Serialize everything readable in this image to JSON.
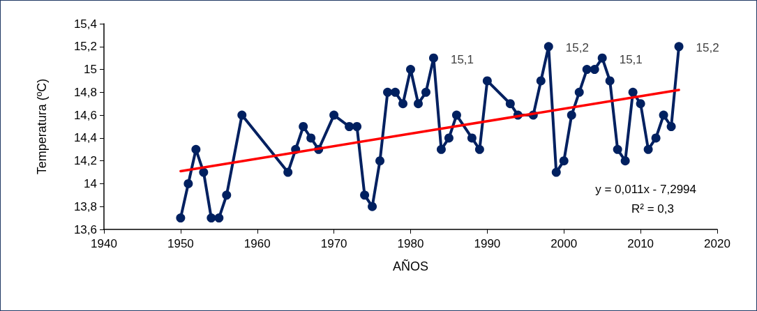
{
  "chart_data": {
    "type": "line",
    "xlabel": "AÑOS",
    "ylabel": "Temperatura (ºC)",
    "xlim": [
      1940,
      2020
    ],
    "xticks": [
      1940,
      1950,
      1960,
      1970,
      1980,
      1990,
      2000,
      2010,
      2020
    ],
    "ylim": [
      13.6,
      15.4
    ],
    "yticks": [
      {
        "value": 13.6,
        "label": "13,6"
      },
      {
        "value": 13.8,
        "label": "13,8"
      },
      14,
      {
        "value": 14.2,
        "label": "14,2"
      },
      {
        "value": 14.4,
        "label": "14,4"
      },
      {
        "value": 14.6,
        "label": "14,6"
      },
      {
        "value": 14.8,
        "label": "14,8"
      },
      15,
      {
        "value": 15.2,
        "label": "15,2"
      },
      {
        "value": 15.4,
        "label": "15,4"
      }
    ],
    "grid": false,
    "marker": "circle",
    "line_style": "solid",
    "series": [
      {
        "color": "#002060",
        "x": [
          1950,
          1951,
          1952,
          1953,
          1954,
          1955,
          1956,
          1958,
          1964,
          1965,
          1966,
          1967,
          1968,
          1970,
          1972,
          1973,
          1974,
          1975,
          1976,
          1977,
          1978,
          1979,
          1980,
          1981,
          1982,
          1983,
          1984,
          1985,
          1986,
          1988,
          1989,
          1990,
          1993,
          1994,
          1996,
          1997,
          1998,
          1999,
          2000,
          2001,
          2002,
          2003,
          2004,
          2005,
          2006,
          2007,
          2008,
          2009,
          2010,
          2011,
          2012,
          2013,
          2014,
          2015
        ],
        "values": [
          13.7,
          14.0,
          14.3,
          14.1,
          13.7,
          13.7,
          13.9,
          14.6,
          14.1,
          14.3,
          14.5,
          14.4,
          14.3,
          14.6,
          14.5,
          14.5,
          13.9,
          13.8,
          14.2,
          14.8,
          14.8,
          14.7,
          15.0,
          14.7,
          14.8,
          15.1,
          14.3,
          14.4,
          14.6,
          14.4,
          14.3,
          14.9,
          14.7,
          14.6,
          14.6,
          14.9,
          15.2,
          14.1,
          14.2,
          14.6,
          14.8,
          15.0,
          15.0,
          15.1,
          14.9,
          14.3,
          14.2,
          14.8,
          14.7,
          14.3,
          14.4,
          14.6,
          14.5,
          15.2
        ],
        "value_labels": [
          null,
          null,
          null,
          null,
          null,
          null,
          null,
          null,
          null,
          null,
          null,
          null,
          null,
          null,
          null,
          null,
          null,
          null,
          null,
          null,
          null,
          null,
          null,
          null,
          null,
          "15,1",
          null,
          null,
          null,
          null,
          null,
          null,
          null,
          null,
          null,
          null,
          "15,2",
          null,
          null,
          null,
          null,
          null,
          null,
          "15,1",
          null,
          null,
          null,
          null,
          null,
          null,
          null,
          null,
          null,
          "15,2"
        ]
      },
      {
        "color": "#ff0000",
        "marker": "none",
        "x": [
          1950,
          2015
        ],
        "values": [
          14.11,
          14.82
        ]
      }
    ],
    "annotations": [
      "y = 0,011x - 7,2994",
      "R² = 0,3"
    ]
  }
}
